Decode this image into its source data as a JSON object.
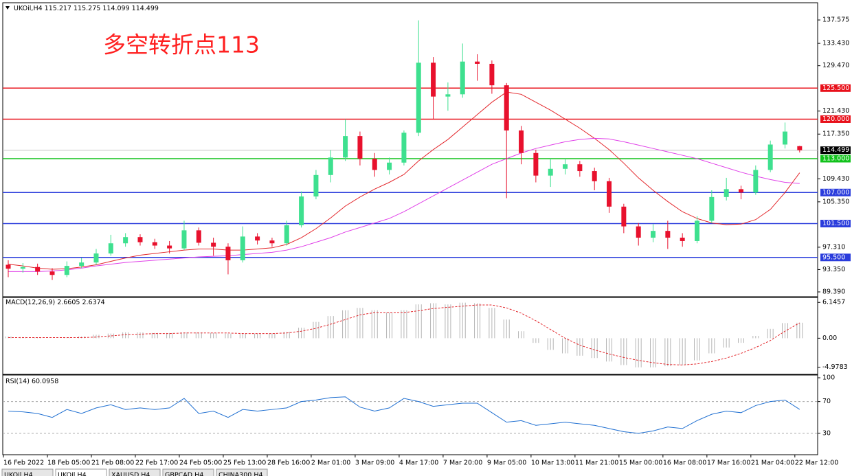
{
  "chart_data": [
    {
      "type": "candlestick",
      "symbol": "UKOil,H4",
      "annotation": "多空转折点113",
      "categories": [
        "16 Feb 2022",
        null,
        null,
        "18 Feb 05:00",
        null,
        null,
        "21 Feb 08:00",
        null,
        null,
        "22 Feb 17:00",
        null,
        null,
        "24 Feb 05:00",
        null,
        null,
        "25 Feb 13:00",
        null,
        null,
        "28 Feb 16:00",
        null,
        null,
        "2 Mar 01:00",
        null,
        null,
        "3 Mar 09:00",
        null,
        null,
        "4 Mar 17:00",
        null,
        null,
        "7 Mar 20:00",
        null,
        null,
        "9 Mar 05:00",
        null,
        null,
        "10 Mar 13:00",
        null,
        null,
        "11 Mar 21:00",
        null,
        null,
        "15 Mar 00:00",
        null,
        null,
        "16 Mar 08:00",
        null,
        null,
        "17 Mar 16:00",
        null,
        null,
        "21 Mar 04:00",
        null,
        null,
        "22 Mar 12:00"
      ],
      "open": [
        94.2,
        93.5,
        93.8,
        93.0,
        92.4,
        94.0,
        94.6,
        96.2,
        98.0,
        99.1,
        98.2,
        97.6,
        97.1,
        100.3,
        98.1,
        97.4,
        95.0,
        99.2,
        98.5,
        98.0,
        101.2,
        106.3,
        110.1,
        113.2,
        117.0,
        113.0,
        111.0,
        112.3,
        117.6,
        130.0,
        124.0,
        124.4,
        130.2,
        129.8,
        126.0,
        118.0,
        114.0,
        110.0,
        111.2,
        112.0,
        110.8,
        109.0,
        104.5,
        101.0,
        99.0,
        100.2,
        99.0,
        98.4,
        102.0,
        106.2,
        107.6,
        107.0,
        111.0,
        115.5,
        115.217
      ],
      "high": [
        95.0,
        94.5,
        94.4,
        93.6,
        94.8,
        95.4,
        97.0,
        99.5,
        99.8,
        99.6,
        98.8,
        98.4,
        102.0,
        100.8,
        99.0,
        98.0,
        101.0,
        99.8,
        99.0,
        102.0,
        107.2,
        111.0,
        114.5,
        120.0,
        117.8,
        114.0,
        113.2,
        118.0,
        137.5,
        131.0,
        126.5,
        133.4,
        131.5,
        130.4,
        126.4,
        118.8,
        114.6,
        113.0,
        113.0,
        112.6,
        111.4,
        109.6,
        105.0,
        101.6,
        101.4,
        102.0,
        99.8,
        102.8,
        107.4,
        109.6,
        108.2,
        111.8,
        116.2,
        119.4,
        115.275
      ],
      "low": [
        92.0,
        92.8,
        92.4,
        91.5,
        92.0,
        93.6,
        94.2,
        95.8,
        97.4,
        97.6,
        97.0,
        96.2,
        96.8,
        97.6,
        95.8,
        92.5,
        94.6,
        97.8,
        97.4,
        97.6,
        100.8,
        105.8,
        108.8,
        112.6,
        111.8,
        109.8,
        110.2,
        111.8,
        117.0,
        120.0,
        121.5,
        123.8,
        126.8,
        124.5,
        106.0,
        112.0,
        108.8,
        108.0,
        110.2,
        109.8,
        107.4,
        103.4,
        99.8,
        97.6,
        98.2,
        97.0,
        97.4,
        98.0,
        101.6,
        105.6,
        105.8,
        106.6,
        110.6,
        114.8,
        114.099
      ],
      "close": [
        93.5,
        93.8,
        93.0,
        92.4,
        94.0,
        94.6,
        96.2,
        98.0,
        99.1,
        98.2,
        97.6,
        97.1,
        100.3,
        98.1,
        97.4,
        95.0,
        99.2,
        98.5,
        98.0,
        101.2,
        106.3,
        110.1,
        113.2,
        117.0,
        113.0,
        111.0,
        112.3,
        117.6,
        130.0,
        124.0,
        124.4,
        130.2,
        129.8,
        126.0,
        118.0,
        114.0,
        110.0,
        111.2,
        112.0,
        110.8,
        109.0,
        104.5,
        101.0,
        99.0,
        100.2,
        99.0,
        98.4,
        102.0,
        106.2,
        107.6,
        107.0,
        111.0,
        115.5,
        117.8,
        114.499
      ],
      "up_color": "#3ee08f",
      "down_color": "#e8112d",
      "series": [
        {
          "color": "#e3262b",
          "values": [
            94.3,
            94.0,
            93.6,
            93.4,
            93.5,
            93.8,
            94.2,
            94.8,
            95.4,
            95.9,
            96.2,
            96.5,
            96.8,
            97.0,
            97.0,
            96.8,
            96.8,
            97.0,
            97.2,
            97.8,
            99.0,
            100.6,
            102.5,
            104.6,
            106.2,
            107.6,
            108.8,
            110.2,
            112.6,
            114.6,
            116.4,
            118.6,
            120.8,
            123.0,
            124.8,
            124.4,
            123.0,
            121.6,
            120.0,
            118.4,
            116.6,
            114.6,
            112.2,
            109.6,
            107.4,
            105.4,
            103.6,
            102.4,
            101.6,
            101.3,
            101.4,
            102.2,
            104.0,
            107.0,
            110.5
          ]
        },
        {
          "color": "#e040e8",
          "values": [
            93.0,
            93.0,
            93.0,
            93.1,
            93.3,
            93.6,
            94.0,
            94.3,
            94.6,
            94.8,
            95.0,
            95.2,
            95.4,
            95.6,
            95.7,
            95.8,
            96.0,
            96.2,
            96.4,
            96.8,
            97.4,
            98.2,
            99.0,
            100.0,
            100.8,
            101.6,
            102.4,
            103.6,
            105.0,
            106.4,
            107.8,
            109.2,
            110.6,
            112.0,
            113.0,
            114.0,
            114.8,
            115.4,
            116.0,
            116.4,
            116.6,
            116.5,
            116.0,
            115.4,
            114.8,
            114.2,
            113.6,
            113.0,
            112.2,
            111.4,
            110.6,
            109.9,
            109.3,
            108.8,
            108.6
          ]
        }
      ],
      "levels": [
        {
          "value": 125.5,
          "label": "125.500",
          "color": "#e8101a"
        },
        {
          "value": 120,
          "label": "120.000",
          "color": "#e8101a"
        },
        {
          "value": 113,
          "label": "113.000",
          "color": "#11c21b"
        },
        {
          "value": 107,
          "label": "107.000",
          "color": "#2a3cdc"
        },
        {
          "value": 101.5,
          "label": "101.500",
          "color": "#2a3cdc"
        },
        {
          "value": 95.5,
          "label": "95.500",
          "color": "#2a3cdc"
        }
      ],
      "ylim": [
        88.536,
        140.625
      ],
      "yticks": [
        {
          "value": 137.575,
          "label": "137.575"
        },
        {
          "value": 133.43,
          "label": "133.430"
        },
        {
          "value": 129.47,
          "label": "129.470"
        },
        {
          "value": 121.43,
          "label": "121.430"
        },
        {
          "value": 117.35,
          "label": "117.350"
        },
        {
          "value": 109.43,
          "label": "109.430"
        },
        {
          "value": 105.35,
          "label": "105.350"
        },
        {
          "value": 97.31,
          "label": "97.310"
        },
        {
          "value": 93.35,
          "label": "93.350"
        },
        {
          "value": 89.39,
          "label": "89.390"
        }
      ]
    },
    {
      "type": "macd",
      "title": "MACD(12,26,9)",
      "histogram": {
        "color": "#b4b4b4",
        "values": [
          0.3,
          0.2,
          0.1,
          0.0,
          0.1,
          0.3,
          0.6,
          0.8,
          1.0,
          1.0,
          0.9,
          0.9,
          1.0,
          1.0,
          0.9,
          0.8,
          0.8,
          0.8,
          0.8,
          1.1,
          1.8,
          2.8,
          3.8,
          4.8,
          5.2,
          4.8,
          4.4,
          4.8,
          5.8,
          6.0,
          5.8,
          6.1,
          6.0,
          5.2,
          3.2,
          1.2,
          -0.8,
          -2.0,
          -2.6,
          -3.0,
          -3.4,
          -4.0,
          -4.6,
          -5.0,
          -5.0,
          -4.8,
          -4.6,
          -3.8,
          -2.6,
          -1.6,
          -0.8,
          0.4,
          1.6,
          2.6,
          2.6605
        ]
      },
      "signal": {
        "color": "#e3262b",
        "values": [
          0.1,
          0.1,
          0.1,
          0.1,
          0.1,
          0.1,
          0.2,
          0.4,
          0.6,
          0.7,
          0.8,
          0.8,
          0.9,
          0.9,
          0.9,
          0.9,
          0.8,
          0.8,
          0.8,
          0.9,
          1.2,
          1.7,
          2.4,
          3.2,
          4.0,
          4.4,
          4.4,
          4.4,
          4.7,
          5.1,
          5.3,
          5.5,
          5.7,
          5.7,
          5.2,
          4.3,
          3.0,
          1.5,
          0.0,
          -1.2,
          -2.0,
          -2.7,
          -3.3,
          -3.8,
          -4.2,
          -4.5,
          -4.6,
          -4.4,
          -4.0,
          -3.4,
          -2.6,
          -1.6,
          -0.4,
          1.2,
          2.6374
        ]
      },
      "ylim": [
        -6.2,
        7.0
      ],
      "yticks": [
        6.1457,
        {
          "value": 0,
          "label": "0.00"
        },
        -4.9783
      ]
    },
    {
      "type": "line",
      "title": "RSI(14)",
      "series": [
        {
          "color": "#1f6fd1",
          "values": [
            58,
            57,
            55,
            50,
            60,
            55,
            62,
            66,
            60,
            62,
            60,
            62,
            74,
            55,
            58,
            50,
            60,
            58,
            60,
            62,
            70,
            72,
            75,
            76,
            63,
            58,
            62,
            74,
            70,
            64,
            66,
            68,
            68,
            56,
            44,
            46,
            40,
            42,
            44,
            42,
            40,
            36,
            32,
            30,
            33,
            38,
            36,
            46,
            54,
            58,
            56,
            65,
            70,
            72,
            60.0958
          ]
        }
      ],
      "ylim": [
        3,
        100
      ],
      "yticks": [
        100,
        70,
        30
      ]
    }
  ],
  "tabs": [
    "UKOil,H4",
    "UKOil,H4",
    "XAUUSD,H4",
    "GBPCAD,H4",
    "CHINA300,H4"
  ]
}
